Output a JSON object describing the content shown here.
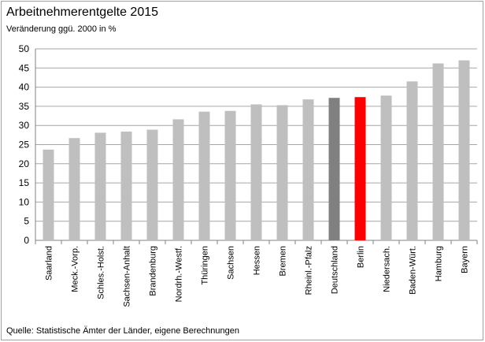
{
  "chart_data": {
    "type": "bar",
    "title": "Arbeitnehmerentgelte  2015",
    "subtitle": "Veränderung ggü. 2000 in %",
    "source": "Quelle: Statistische Ämter der Länder,  eigene Berechnungen",
    "categories": [
      "Saarland",
      "Meck.-Vorp.",
      "Schles.-Holst.",
      "Sachsen-Anhalt",
      "Brandenburg",
      "Nordrh.-Westf.",
      "Thüringen",
      "Sachsen",
      "Hessen",
      "Bremen",
      "Rheinl.-Pfalz",
      "Deutschland",
      "Berlin",
      "Niedersach.",
      "Baden-Würt.",
      "Hamburg",
      "Bayern"
    ],
    "values": [
      23.7,
      26.7,
      28.1,
      28.4,
      28.9,
      31.6,
      33.6,
      33.8,
      35.5,
      35.3,
      36.8,
      37.2,
      37.4,
      37.8,
      41.5,
      46.2,
      47.0
    ],
    "colors": [
      "#bfbfbf",
      "#bfbfbf",
      "#bfbfbf",
      "#bfbfbf",
      "#bfbfbf",
      "#bfbfbf",
      "#bfbfbf",
      "#bfbfbf",
      "#bfbfbf",
      "#bfbfbf",
      "#bfbfbf",
      "#808080",
      "#ff0000",
      "#bfbfbf",
      "#bfbfbf",
      "#bfbfbf",
      "#bfbfbf"
    ],
    "ylim": [
      0,
      50
    ],
    "yticks": [
      0,
      5,
      10,
      15,
      20,
      25,
      30,
      35,
      40,
      45,
      50
    ],
    "grid": true
  }
}
